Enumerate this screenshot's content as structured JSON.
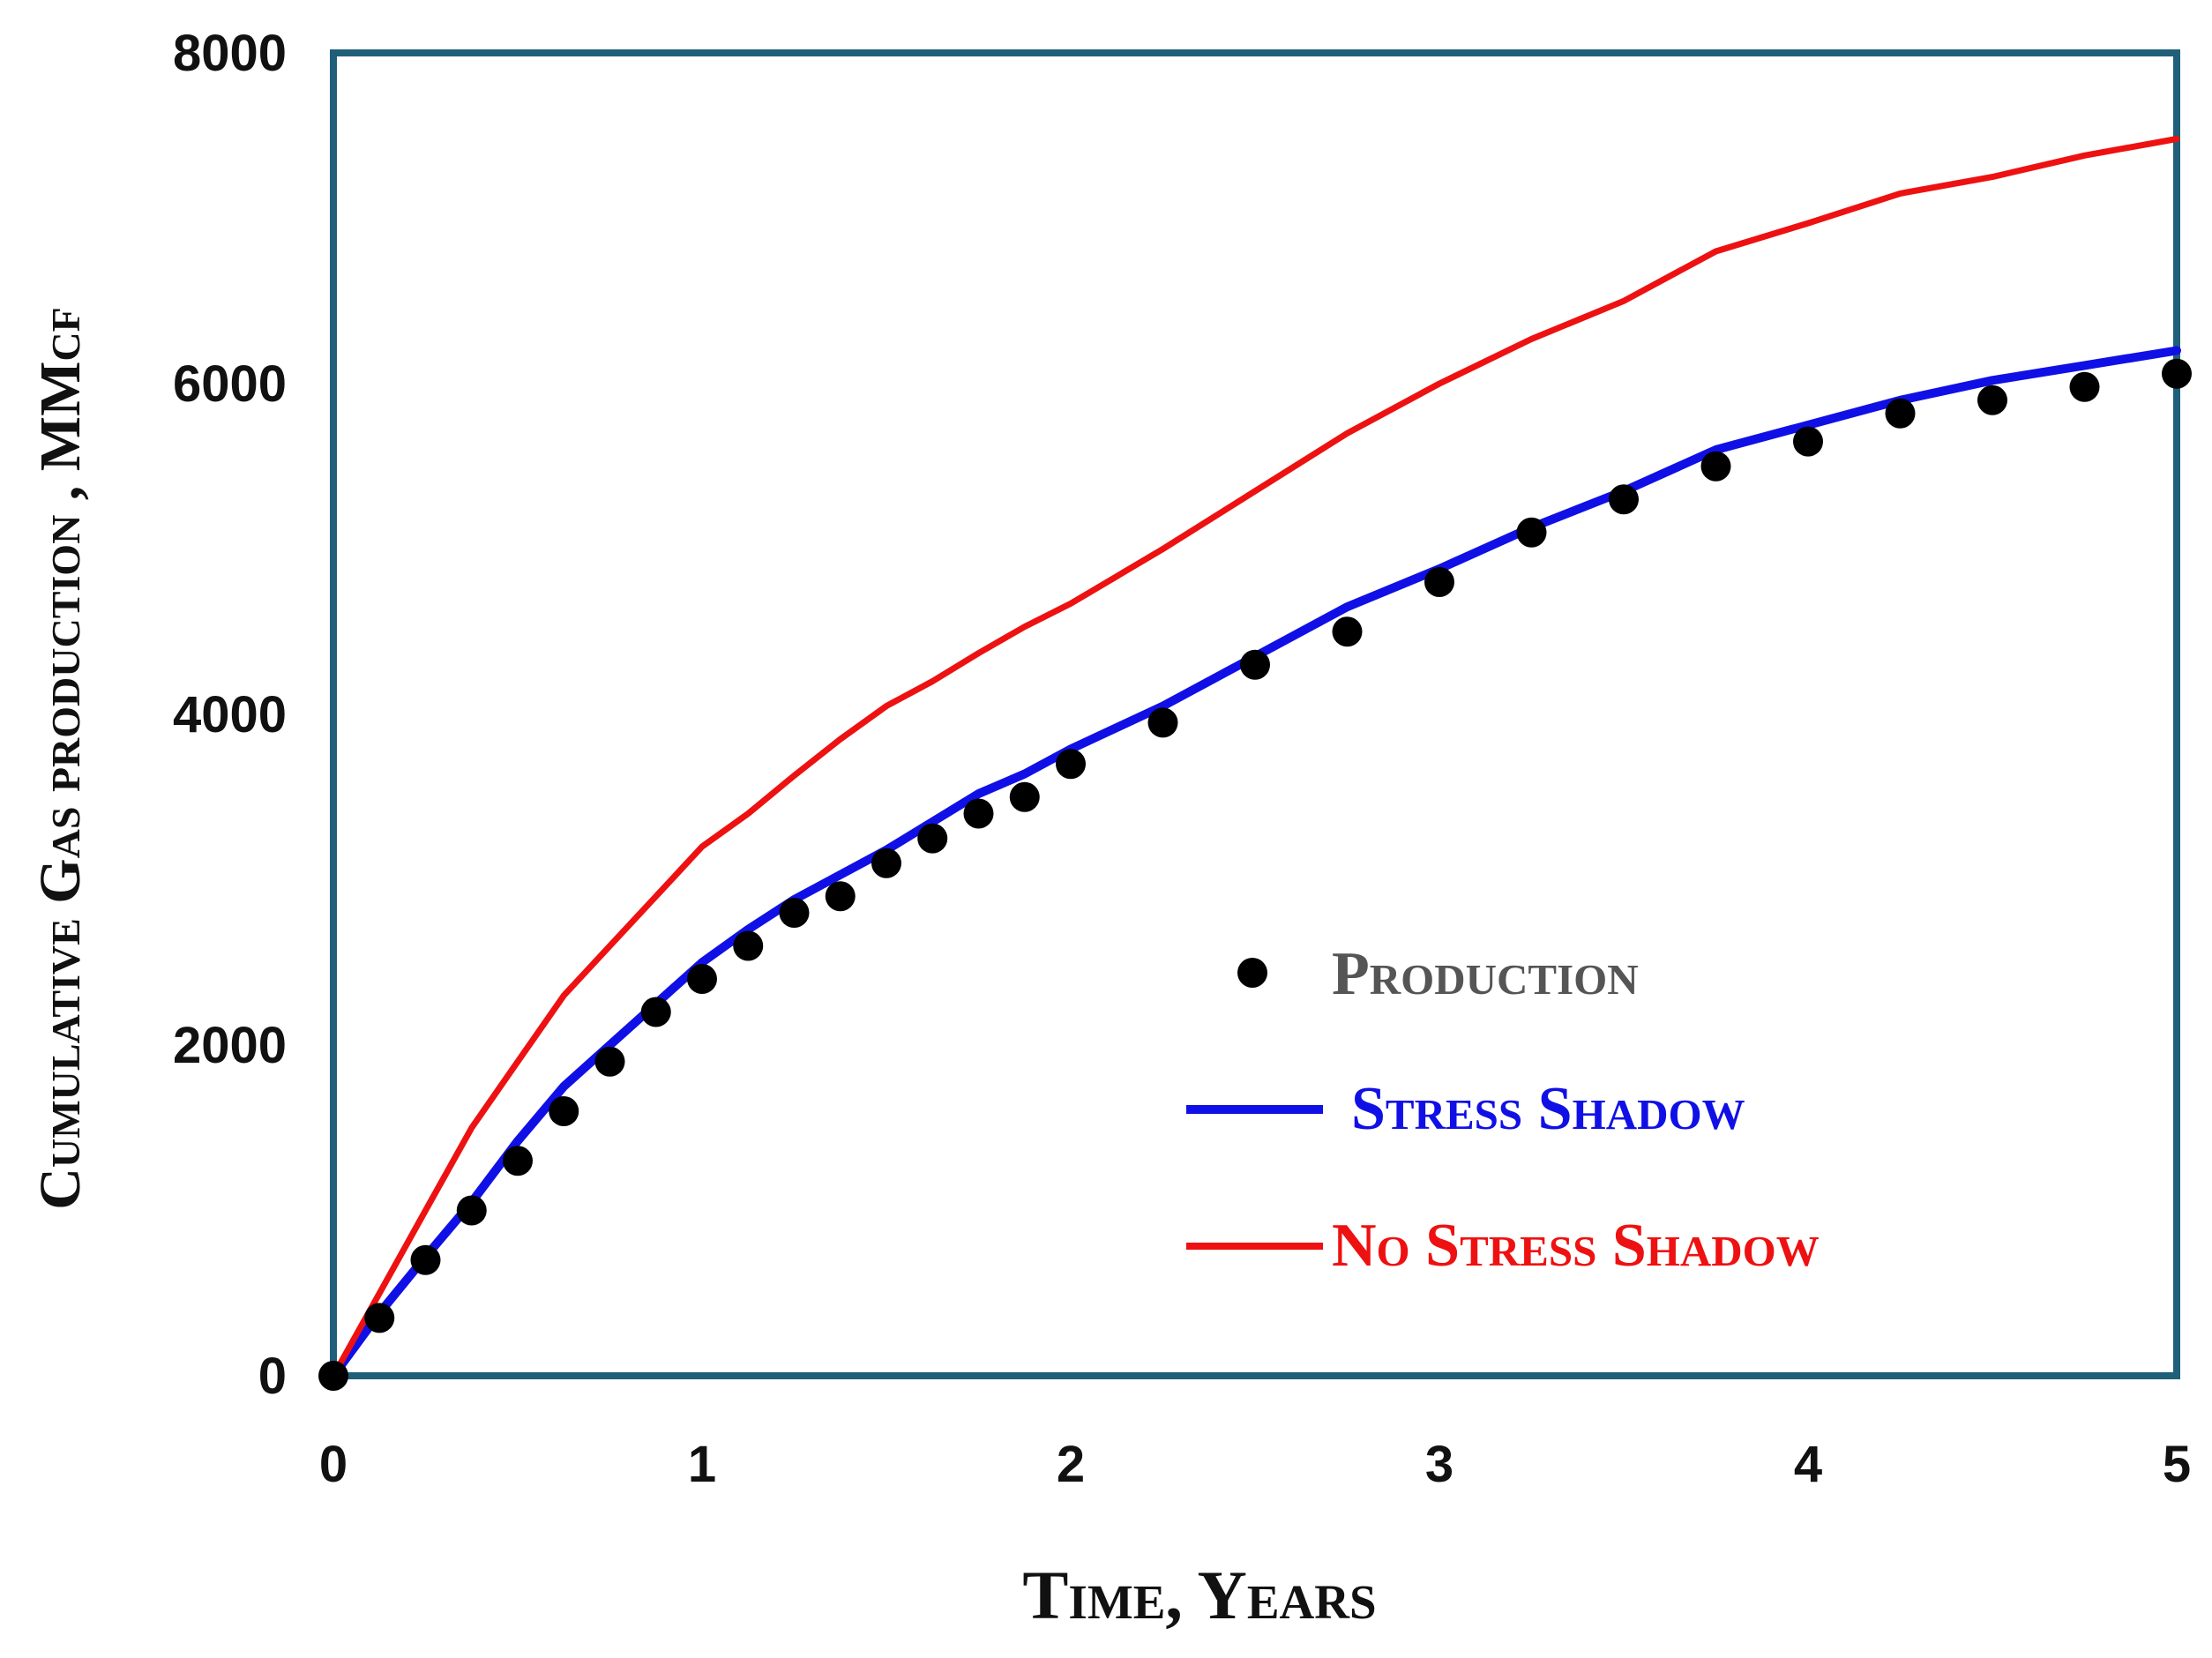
{
  "chart_data": {
    "type": "line",
    "xlabel": "Time, Years",
    "ylabel": "Cumulative Gas production , MMcf",
    "xlim": [
      0,
      5
    ],
    "ylim": [
      0,
      8000
    ],
    "x_ticks": [
      "0",
      "1",
      "2",
      "3",
      "4",
      "5"
    ],
    "y_ticks": [
      "0",
      "2000",
      "4000",
      "6000",
      "8000"
    ],
    "grid": false,
    "legend_position": "lower-right",
    "frame_color": "#1f5f7a",
    "series": [
      {
        "name": "Production",
        "kind": "scatter",
        "color": "#000000",
        "x": [
          0,
          0.125,
          0.25,
          0.375,
          0.5,
          0.625,
          0.75,
          0.875,
          1.0,
          1.125,
          1.25,
          1.375,
          1.5,
          1.625,
          1.75,
          1.875,
          2.0,
          2.25,
          2.5,
          2.75,
          3.0,
          3.25,
          3.5,
          3.75,
          4.0,
          4.25,
          4.5,
          4.75,
          5.0
        ],
        "y": [
          0,
          350,
          700,
          1000,
          1300,
          1600,
          1900,
          2200,
          2400,
          2600,
          2800,
          2900,
          3100,
          3250,
          3400,
          3500,
          3700,
          3950,
          4300,
          4500,
          4800,
          5100,
          5300,
          5500,
          5650,
          5820,
          5900,
          5980,
          6060
        ]
      },
      {
        "name": "Stress Shadow",
        "kind": "line",
        "color": "#1010e6",
        "x": [
          0,
          0.125,
          0.25,
          0.375,
          0.5,
          0.625,
          0.75,
          0.875,
          1.0,
          1.125,
          1.25,
          1.375,
          1.5,
          1.625,
          1.75,
          1.875,
          2.0,
          2.25,
          2.5,
          2.75,
          3.0,
          3.25,
          3.5,
          3.75,
          4.0,
          4.25,
          4.5,
          4.75,
          5.0
        ],
        "y": [
          0,
          380,
          720,
          1050,
          1420,
          1750,
          2000,
          2250,
          2500,
          2700,
          2880,
          3030,
          3180,
          3350,
          3520,
          3640,
          3790,
          4050,
          4350,
          4650,
          4880,
          5130,
          5350,
          5600,
          5750,
          5900,
          6020,
          6110,
          6200
        ]
      },
      {
        "name": "No Stress Shadow",
        "kind": "line",
        "color": "#ee1111",
        "x": [
          0,
          0.125,
          0.25,
          0.375,
          0.5,
          0.625,
          0.75,
          0.875,
          1.0,
          1.125,
          1.25,
          1.375,
          1.5,
          1.625,
          1.75,
          1.875,
          2.0,
          2.25,
          2.5,
          2.75,
          3.0,
          3.25,
          3.5,
          3.75,
          4.0,
          4.25,
          4.5,
          4.75,
          5.0
        ],
        "y": [
          0,
          500,
          1000,
          1500,
          1900,
          2300,
          2600,
          2900,
          3200,
          3400,
          3630,
          3850,
          4050,
          4200,
          4370,
          4530,
          4670,
          5000,
          5350,
          5700,
          6000,
          6270,
          6500,
          6800,
          6970,
          7150,
          7250,
          7380,
          7480
        ]
      }
    ]
  }
}
